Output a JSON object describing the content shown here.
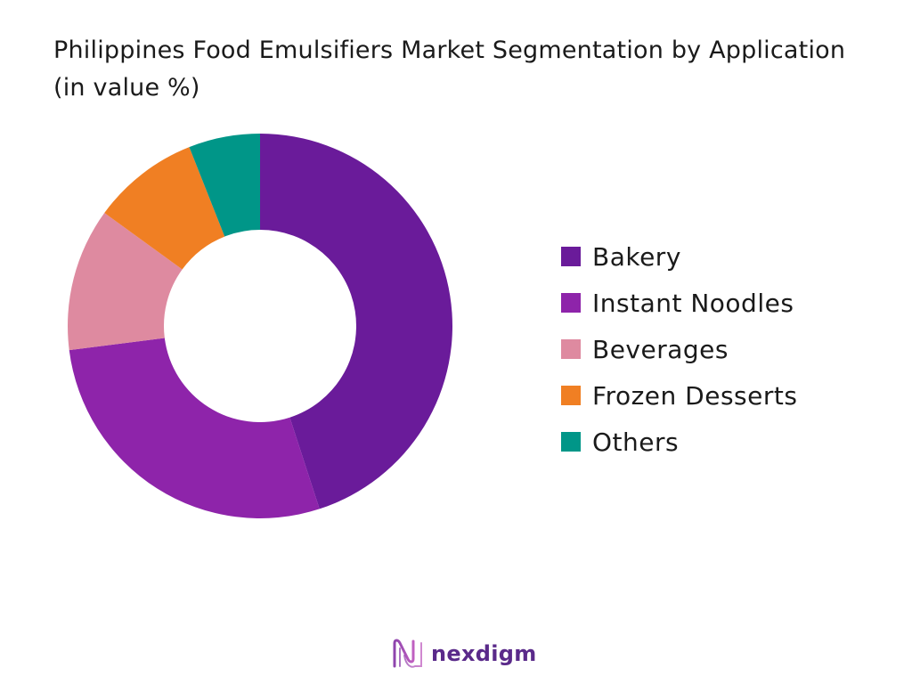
{
  "chart_data": {
    "type": "pie",
    "title": "Philippines Food Emulsifiers Market Segmentation by Application (in value %)",
    "categories": [
      "Bakery",
      "Instant Noodles",
      "Beverages",
      "Frozen Desserts",
      "Others"
    ],
    "values": [
      45,
      28,
      12,
      9,
      6
    ],
    "colors": [
      "#6a1b9a",
      "#8e24aa",
      "#de8aa0",
      "#f07f23",
      "#009688"
    ],
    "donut": true,
    "legend_position": "right"
  },
  "brand": {
    "name": "nexdigm",
    "color": "#5a2a8a",
    "icon": "nexdigm-wave-icon"
  }
}
